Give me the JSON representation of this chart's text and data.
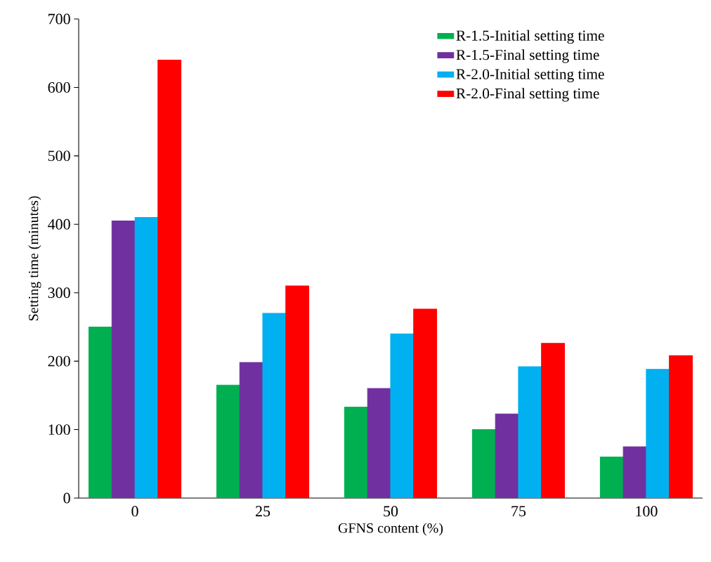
{
  "chart_data": {
    "type": "bar",
    "xlabel": "GFNS content (%)",
    "ylabel": "Setting time (minutes)",
    "categories": [
      "0",
      "25",
      "50",
      "75",
      "100"
    ],
    "series": [
      {
        "name": "R-1.5-Initial setting time",
        "color": "#00b050",
        "values": [
          250,
          165,
          133,
          100,
          60
        ]
      },
      {
        "name": "R-1.5-Final setting time",
        "color": "#7030a0",
        "values": [
          405,
          198,
          160,
          123,
          75
        ]
      },
      {
        "name": "R-2.0-Initial setting time",
        "color": "#00b0f0",
        "values": [
          410,
          270,
          240,
          192,
          188
        ]
      },
      {
        "name": "R-2.0-Final setting time",
        "color": "#ff0000",
        "values": [
          640,
          310,
          276,
          226,
          208
        ]
      }
    ],
    "ylim": [
      0,
      700
    ],
    "yticks": [
      0,
      100,
      200,
      300,
      400,
      500,
      600,
      700
    ],
    "grid": false,
    "legend": "top right"
  }
}
